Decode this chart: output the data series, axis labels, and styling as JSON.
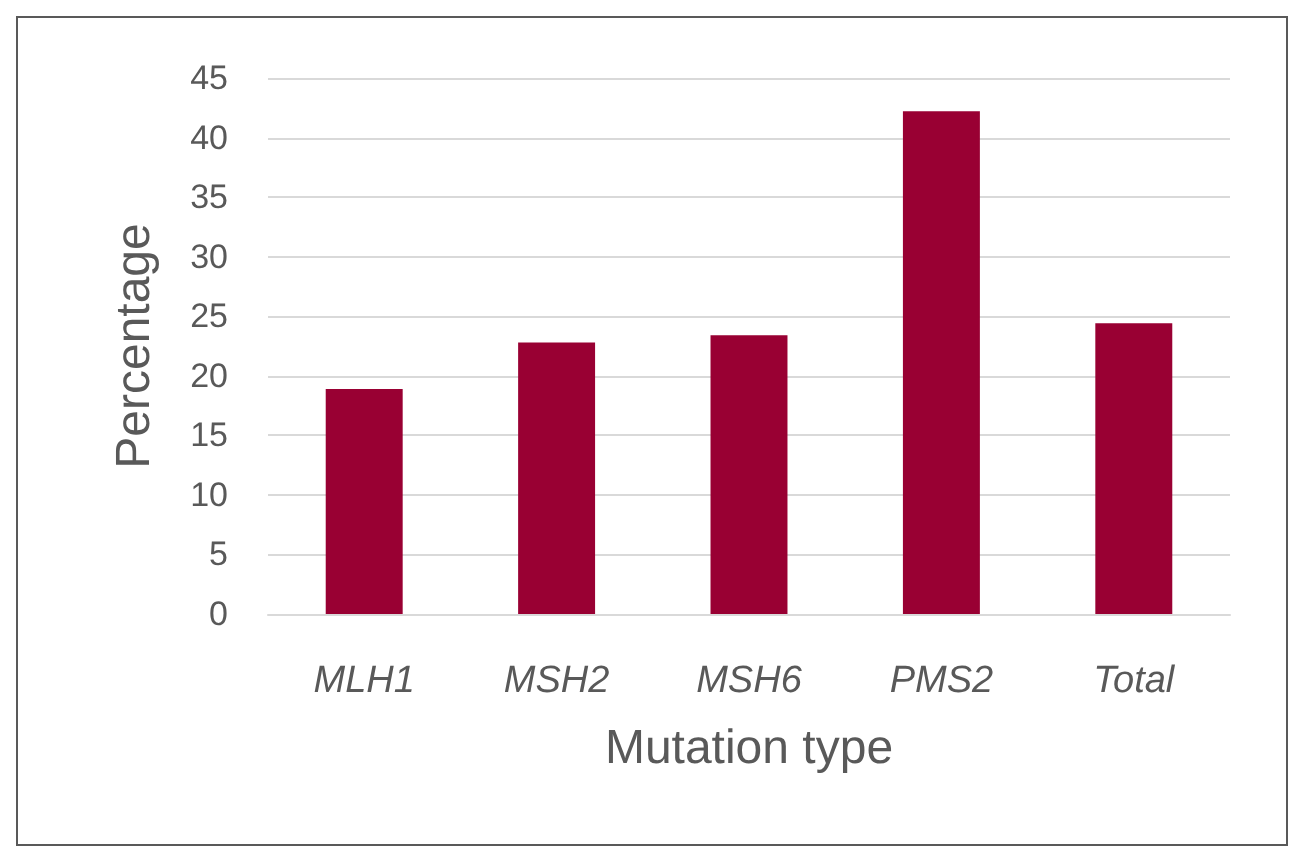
{
  "chart_data": {
    "type": "bar",
    "xlabel": "Mutation type",
    "ylabel": "Percentage",
    "categories": [
      "MLH1",
      "MSH2",
      "MSH6",
      "PMS2",
      "Total"
    ],
    "values": [
      18.9,
      22.8,
      23.4,
      42.2,
      24.4
    ],
    "color": "#990033",
    "ylim": [
      0,
      45
    ],
    "yticks": [
      0,
      5,
      10,
      15,
      20,
      25,
      30,
      35,
      40,
      45
    ],
    "grid": "y"
  }
}
